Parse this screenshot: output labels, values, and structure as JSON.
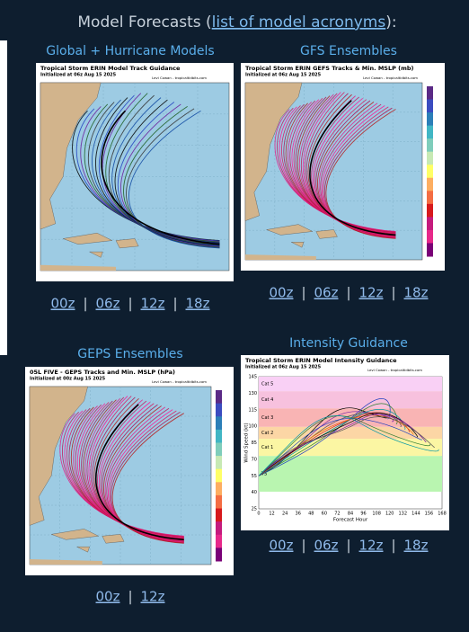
{
  "header": {
    "title": "Model Forecasts (",
    "link": "list of model acronyms",
    "suffix": "):"
  },
  "separator": "|",
  "panels": [
    {
      "title": "Global + Hurricane Models",
      "image": {
        "title": "Tropical Storm ERIN Model Track Guidance",
        "subtitle": "Initialized at 06z Aug 15 2025",
        "credit": "Levi Cowan - tropicaltidbits.com"
      },
      "links": [
        "00z",
        "06z",
        "12z",
        "18z"
      ]
    },
    {
      "title": "GFS Ensembles",
      "image": {
        "title": "Tropical Storm ERIN GEFS Tracks & Min. MSLP (mb)",
        "subtitle": "Initialized at 06z Aug 15 2025",
        "credit": "Levi Cowan - tropicaltidbits.com"
      },
      "links": [
        "00z",
        "06z",
        "12z",
        "18z"
      ]
    },
    {
      "title": "GEPS Ensembles",
      "image": {
        "title": "05L FIVE - GEPS Tracks and Min. MSLP (hPa)",
        "subtitle": "Initialized at 00z Aug 15 2025",
        "credit": "Levi Cowan - tropicaltidbits.com"
      },
      "links": [
        "00z",
        "12z"
      ]
    },
    {
      "title": "Intensity Guidance",
      "image": {
        "title": "Tropical Storm ERIN Model Intensity Guidance",
        "subtitle": "Initialized at 06z Aug 15 2025",
        "credit": "Levi Cowan - tropicaltidbits.com",
        "ylabel": "Wind Speed (kt)",
        "xlabel": "Forecast Hour",
        "yticks": [
          "145",
          "130",
          "115",
          "100",
          "85",
          "70",
          "55",
          "40",
          "25"
        ],
        "xticks": [
          "0",
          "12",
          "24",
          "36",
          "48",
          "60",
          "72",
          "84",
          "96",
          "108",
          "120",
          "132",
          "144",
          "156",
          "168"
        ],
        "bands": [
          "Cat 5",
          "Cat 4",
          "Cat 3",
          "Cat 2",
          "Cat 1",
          "TS"
        ]
      },
      "links": [
        "00z",
        "06z",
        "12z",
        "18z"
      ]
    }
  ]
}
